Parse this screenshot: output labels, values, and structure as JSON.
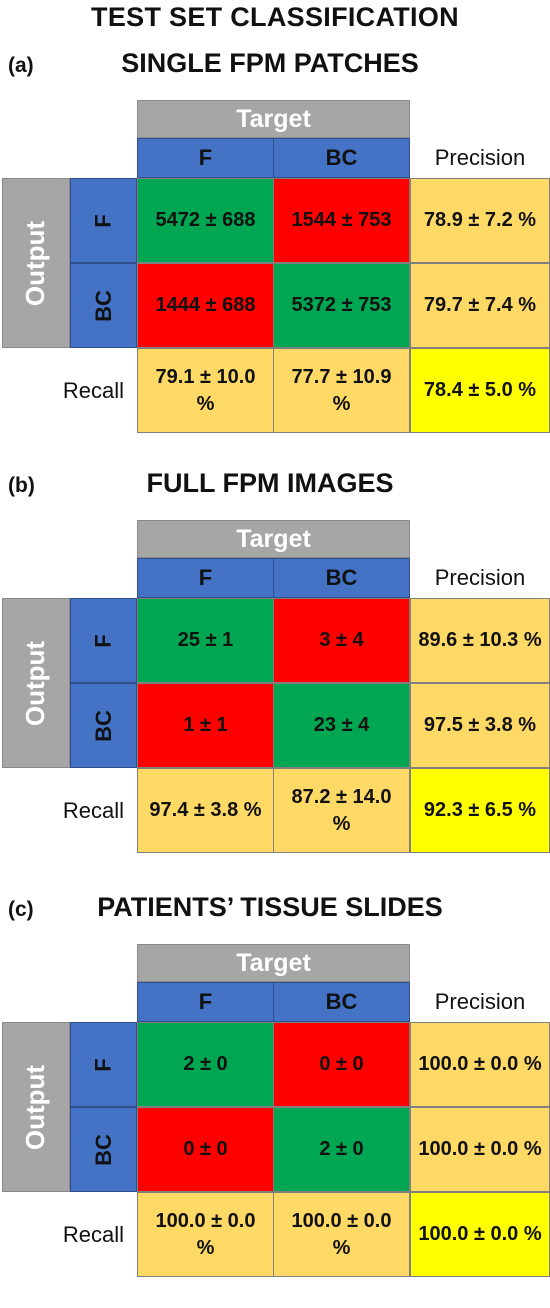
{
  "title": "TEST SET CLASSIFICATION",
  "labels": {
    "target": "Target",
    "output": "Output",
    "precision": "Precision",
    "recall": "Recall",
    "col_f": "F",
    "col_bc": "BC",
    "row_f": "F",
    "row_bc": "BC"
  },
  "panels": [
    {
      "letter": "(a)",
      "title": "SINGLE FPM PATCHES",
      "f_f": "5472 ± 688",
      "f_bc": "1544 ± 753",
      "f_precision": "78.9 ± 7.2 %",
      "bc_f": "1444 ± 688",
      "bc_bc": "5372 ± 753",
      "bc_precision": "79.7 ± 7.4 %",
      "recall_f": "79.1 ± 10.0 %",
      "recall_bc": "77.7 ± 10.9 %",
      "overall": "78.4 ± 5.0 %"
    },
    {
      "letter": "(b)",
      "title": "FULL FPM IMAGES",
      "f_f": "25 ± 1",
      "f_bc": "3 ± 4",
      "f_precision": "89.6 ± 10.3 %",
      "bc_f": "1 ± 1",
      "bc_bc": "23 ± 4",
      "bc_precision": "97.5 ± 3.8 %",
      "recall_f": "97.4 ± 3.8 %",
      "recall_bc": "87.2 ± 14.0 %",
      "overall": "92.3 ± 6.5 %"
    },
    {
      "letter": "(c)",
      "title": "PATIENTS’ TISSUE SLIDES",
      "f_f": "2 ± 0",
      "f_bc": "0 ± 0",
      "f_precision": "100.0 ± 0.0 %",
      "bc_f": "0 ± 0",
      "bc_bc": "2 ± 0",
      "bc_precision": "100.0 ± 0.0 %",
      "recall_f": "100.0 ± 0.0 %",
      "recall_bc": "100.0 ± 0.0 %",
      "overall": "100.0 ± 0.0 %"
    }
  ]
}
